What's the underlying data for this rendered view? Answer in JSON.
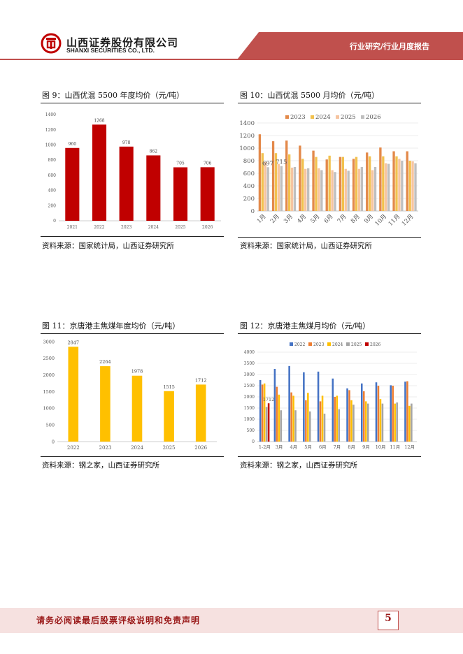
{
  "header": {
    "company_cn": "山西证券股份有限公司",
    "company_en": "SHANXI SECURITIES CO., LTD.",
    "section": "行业研究/行业月度报告",
    "accent_color": "#c0504d"
  },
  "figures": [
    {
      "title": "图 9：山西优混 5500 年度均价（元/吨）",
      "source": "资料来源：国家统计局，山西证券研究所"
    },
    {
      "title": "图 10：山西优混 5500 月均价（元/吨）",
      "source": "资料来源：国家统计局，山西证券研究所"
    },
    {
      "title": "图 11：京唐港主焦煤年度均价（元/吨）",
      "source": "资料来源：钢之家，山西证券研究所"
    },
    {
      "title": "图 12：京唐港主焦煤月均价（元/吨）",
      "source": "资料来源：钢之家，山西证券研究所"
    }
  ],
  "footer": {
    "disclaimer": "请务必阅读最后股票评级说明和免责声明",
    "page": "5"
  },
  "chart_data": [
    {
      "type": "bar",
      "categories": [
        "2021",
        "2022",
        "2023",
        "2024",
        "2025",
        "2026"
      ],
      "values": [
        960,
        1268,
        978,
        862,
        705,
        706
      ],
      "ylim": [
        0,
        1400
      ],
      "yticks": [
        0,
        200,
        400,
        600,
        800,
        1000,
        1200,
        1400
      ],
      "data_labels": true,
      "grid": false,
      "colors": [
        "#c00000"
      ]
    },
    {
      "type": "bar",
      "categories": [
        "1月",
        "2月",
        "3月",
        "4月",
        "5月",
        "6月",
        "7月",
        "8月",
        "9月",
        "10月",
        "11月",
        "12月"
      ],
      "series": [
        {
          "name": "2023",
          "values": [
            1220,
            1110,
            1120,
            1040,
            960,
            820,
            860,
            830,
            930,
            1010,
            950,
            950
          ]
        },
        {
          "name": "2024",
          "values": [
            920,
            920,
            900,
            830,
            860,
            880,
            860,
            860,
            870,
            870,
            870,
            800
          ]
        },
        {
          "name": "2025",
          "values": [
            780,
            750,
            690,
            670,
            680,
            650,
            670,
            670,
            650,
            760,
            830,
            790
          ]
        },
        {
          "name": "2026",
          "values": [
            697,
            715,
            700,
            680,
            650,
            620,
            640,
            700,
            700,
            750,
            800,
            760
          ]
        }
      ],
      "data_labels_shown": {
        "2026": [
          697,
          715
        ]
      },
      "ylim": [
        0,
        1400
      ],
      "yticks": [
        0,
        200,
        400,
        600,
        800,
        1000,
        1200,
        1400
      ],
      "legend": "top",
      "grid": true,
      "colors": [
        "#e3894a",
        "#f2c14e",
        "#f6c4a0",
        "#bfbfbf"
      ]
    },
    {
      "type": "bar",
      "categories": [
        "2022",
        "2023",
        "2024",
        "2025",
        "2026"
      ],
      "values": [
        2847,
        2264,
        1978,
        1515,
        1712
      ],
      "ylim": [
        0,
        3000
      ],
      "yticks": [
        0,
        500,
        1000,
        1500,
        2000,
        2500,
        3000
      ],
      "data_labels": true,
      "grid": false,
      "colors": [
        "#ffc000"
      ]
    },
    {
      "type": "bar",
      "categories": [
        "1-2月",
        "3月",
        "4月",
        "5月",
        "6月",
        "7月",
        "8月",
        "9月",
        "10月",
        "11月",
        "12月"
      ],
      "series": [
        {
          "name": "2022",
          "values": [
            2750,
            3250,
            3380,
            3100,
            3130,
            2820,
            2380,
            2600,
            2650,
            2520,
            2680
          ]
        },
        {
          "name": "2023",
          "values": [
            2550,
            2450,
            2200,
            1850,
            1800,
            2000,
            2300,
            2250,
            2500,
            2500,
            2700
          ]
        },
        {
          "name": "2024",
          "values": [
            2600,
            2100,
            2050,
            2180,
            2050,
            2050,
            1850,
            1800,
            1900,
            1700,
            1600
          ]
        },
        {
          "name": "2025",
          "values": [
            1550,
            1400,
            1400,
            1350,
            1250,
            1450,
            1650,
            1700,
            1700,
            1750,
            1700
          ]
        },
        {
          "name": "2026",
          "values": [
            1712,
            null,
            null,
            null,
            null,
            null,
            null,
            null,
            null,
            null,
            null
          ]
        }
      ],
      "data_labels_shown": {
        "2026": [
          1712
        ]
      },
      "ylim": [
        0,
        4000
      ],
      "yticks": [
        0,
        500,
        1000,
        1500,
        2000,
        2500,
        3000,
        3500,
        4000
      ],
      "legend": "top",
      "grid": true,
      "colors": [
        "#4472c4",
        "#ed7d31",
        "#ffc000",
        "#a5a5a5",
        "#c00000"
      ]
    }
  ]
}
